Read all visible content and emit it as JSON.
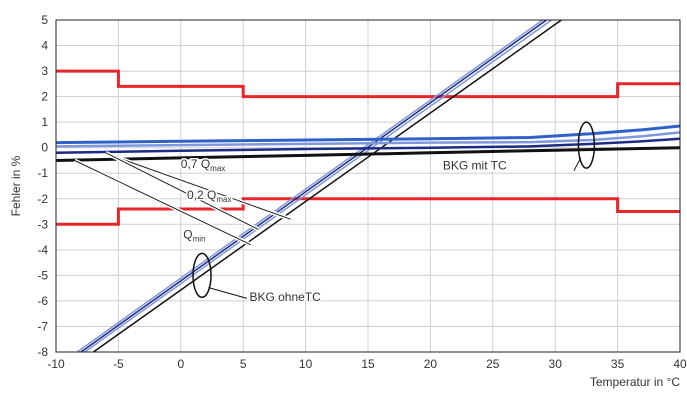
{
  "chart_data": {
    "type": "line",
    "xlabel": "Temperatur in °C",
    "ylabel": "Fehler in %",
    "xlim": [
      -10,
      40
    ],
    "ylim": [
      -8,
      5
    ],
    "xticks": [
      "-10",
      "-5",
      "0",
      "5",
      "10",
      "15",
      "20",
      "25",
      "30",
      "35",
      "40"
    ],
    "yticks": [
      "5",
      "4",
      "3",
      "2",
      "1",
      "0",
      "-1",
      "-2",
      "-3",
      "-4",
      "-5",
      "-6",
      "-7",
      "-8"
    ],
    "grid": true,
    "colors": {
      "limits": "#e8262a",
      "blue": "#2f62c8",
      "lightblue": "#7f97dc",
      "navy": "#1d2a86",
      "black": "#111111",
      "grid": "#cfcfcf"
    },
    "limits": {
      "upper": [
        [
          -10,
          3
        ],
        [
          -5,
          3
        ],
        [
          -5,
          2.4
        ],
        [
          5,
          2.4
        ],
        [
          5,
          2
        ],
        [
          35,
          2
        ],
        [
          35,
          2.5
        ],
        [
          40,
          2.5
        ]
      ],
      "lower": [
        [
          -10,
          -3
        ],
        [
          -5,
          -3
        ],
        [
          -5,
          -2.4
        ],
        [
          5,
          -2.4
        ],
        [
          5,
          -2
        ],
        [
          35,
          -2
        ],
        [
          35,
          -2.5
        ],
        [
          40,
          -2.5
        ]
      ]
    },
    "series_with_tc": [
      {
        "color": "blue",
        "points": [
          [
            -10,
            0.2
          ],
          [
            0,
            0.25
          ],
          [
            10,
            0.3
          ],
          [
            20,
            0.35
          ],
          [
            28,
            0.4
          ],
          [
            33,
            0.55
          ],
          [
            37,
            0.7
          ],
          [
            40,
            0.85
          ]
        ]
      },
      {
        "color": "lightblue",
        "points": [
          [
            -10,
            0.05
          ],
          [
            0,
            0.1
          ],
          [
            10,
            0.15
          ],
          [
            20,
            0.2
          ],
          [
            28,
            0.22
          ],
          [
            33,
            0.3
          ],
          [
            37,
            0.45
          ],
          [
            40,
            0.6
          ]
        ]
      },
      {
        "color": "navy",
        "points": [
          [
            -10,
            -0.2
          ],
          [
            0,
            -0.12
          ],
          [
            10,
            -0.05
          ],
          [
            20,
            0.0
          ],
          [
            28,
            0.05
          ],
          [
            33,
            0.15
          ],
          [
            37,
            0.25
          ],
          [
            40,
            0.35
          ]
        ]
      },
      {
        "color": "black",
        "points": [
          [
            -10,
            -0.5
          ],
          [
            0,
            -0.4
          ],
          [
            10,
            -0.3
          ],
          [
            20,
            -0.2
          ],
          [
            30,
            -0.1
          ],
          [
            40,
            0.0
          ]
        ]
      }
    ],
    "series_without_tc": [
      {
        "color": "lightblue",
        "points": [
          [
            -8.3,
            -8
          ],
          [
            29,
            5
          ]
        ]
      },
      {
        "color": "navy",
        "points": [
          [
            -8.0,
            -8
          ],
          [
            29.3,
            5
          ]
        ]
      },
      {
        "color": "lightblue",
        "points": [
          [
            -7.7,
            -8
          ],
          [
            29.7,
            5
          ]
        ]
      },
      {
        "color": "black",
        "points": [
          [
            -7.0,
            -8
          ],
          [
            30.5,
            5
          ]
        ]
      }
    ],
    "annotations": [
      {
        "id": "q07",
        "base": "0,7 Q",
        "sub": "max",
        "anchor": [
          0,
          -0.8
        ],
        "leader": [
          [
            -5,
            -0.4
          ],
          [
            8.8,
            -2.8
          ]
        ]
      },
      {
        "id": "q02",
        "base": "0,2 Q",
        "sub": "max",
        "anchor": [
          0.5,
          -2.0
        ],
        "leader": [
          [
            -6,
            -0.2
          ],
          [
            6.2,
            -3.2
          ]
        ]
      },
      {
        "id": "qmin",
        "base": "Q",
        "sub": "min",
        "anchor": [
          0.2,
          -3.55
        ],
        "leader": [
          [
            -8.5,
            -0.5
          ],
          [
            5.6,
            -3.8
          ]
        ]
      },
      {
        "id": "bkg-mit",
        "base": "BKG mit TC",
        "anchor": [
          21,
          -0.85
        ]
      },
      {
        "id": "bkg-ohne",
        "base": "BKG ohneTC",
        "anchor": [
          5.5,
          -6.0
        ]
      }
    ]
  }
}
